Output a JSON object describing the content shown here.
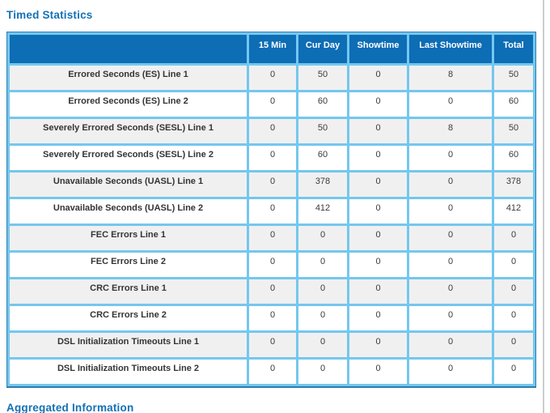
{
  "page": {
    "section_title": "Timed Statistics",
    "bottom_section_title": "Aggregated Information"
  },
  "colors": {
    "title_color": "#1272b6",
    "header_bg": "#0d6db5",
    "border_light": "#74c7ee",
    "border_dark": "#2e7cad",
    "row_alt_bg": "#f0f0f0"
  },
  "table": {
    "headers": [
      "",
      "15 Min",
      "Cur Day",
      "Showtime",
      "Last Showtime",
      "Total"
    ],
    "rows": [
      {
        "label": "Errored Seconds (ES) Line 1",
        "values": [
          "0",
          "50",
          "0",
          "8",
          "50"
        ]
      },
      {
        "label": "Errored Seconds (ES) Line 2",
        "values": [
          "0",
          "60",
          "0",
          "0",
          "60"
        ]
      },
      {
        "label": "Severely Errored Seconds (SESL) Line 1",
        "values": [
          "0",
          "50",
          "0",
          "8",
          "50"
        ]
      },
      {
        "label": "Severely Errored Seconds (SESL) Line 2",
        "values": [
          "0",
          "60",
          "0",
          "0",
          "60"
        ]
      },
      {
        "label": "Unavailable Seconds (UASL) Line 1",
        "values": [
          "0",
          "378",
          "0",
          "0",
          "378"
        ]
      },
      {
        "label": "Unavailable Seconds (UASL) Line 2",
        "values": [
          "0",
          "412",
          "0",
          "0",
          "412"
        ]
      },
      {
        "label": "FEC Errors Line 1",
        "values": [
          "0",
          "0",
          "0",
          "0",
          "0"
        ]
      },
      {
        "label": "FEC Errors Line 2",
        "values": [
          "0",
          "0",
          "0",
          "0",
          "0"
        ]
      },
      {
        "label": "CRC Errors Line 1",
        "values": [
          "0",
          "0",
          "0",
          "0",
          "0"
        ]
      },
      {
        "label": "CRC Errors Line 2",
        "values": [
          "0",
          "0",
          "0",
          "0",
          "0"
        ]
      },
      {
        "label": "DSL Initialization Timeouts Line 1",
        "values": [
          "0",
          "0",
          "0",
          "0",
          "0"
        ]
      },
      {
        "label": "DSL Initialization Timeouts Line 2",
        "values": [
          "0",
          "0",
          "0",
          "0",
          "0"
        ]
      }
    ]
  }
}
